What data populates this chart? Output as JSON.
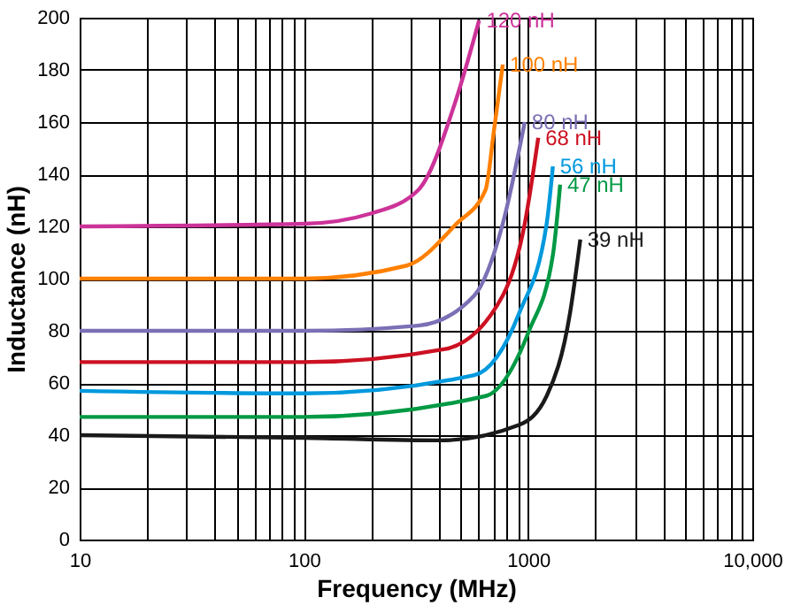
{
  "chart_data": {
    "type": "line",
    "xlabel": "Frequency (MHz)",
    "ylabel": "Inductance (nH)",
    "log": "x",
    "grid": true,
    "legend": false,
    "marker": "none",
    "line_style": "solid",
    "xlim": [
      10,
      10000
    ],
    "ylim": [
      0,
      200
    ],
    "xticks": [
      10,
      {
        "value": 20,
        "label": null
      },
      {
        "value": 30,
        "label": null
      },
      {
        "value": 40,
        "label": null
      },
      {
        "value": 50,
        "label": null
      },
      {
        "value": 60,
        "label": null
      },
      {
        "value": 70,
        "label": null
      },
      {
        "value": 80,
        "label": null
      },
      {
        "value": 90,
        "label": null
      },
      100,
      {
        "value": 200,
        "label": null
      },
      {
        "value": 300,
        "label": null
      },
      {
        "value": 400,
        "label": null
      },
      {
        "value": 500,
        "label": null
      },
      {
        "value": 600,
        "label": null
      },
      {
        "value": 700,
        "label": null
      },
      {
        "value": 800,
        "label": null
      },
      {
        "value": 900,
        "label": null
      },
      1000,
      {
        "value": 2000,
        "label": null
      },
      {
        "value": 3000,
        "label": null
      },
      {
        "value": 4000,
        "label": null
      },
      {
        "value": 5000,
        "label": null
      },
      {
        "value": 6000,
        "label": null
      },
      {
        "value": 7000,
        "label": null
      },
      {
        "value": 8000,
        "label": null
      },
      {
        "value": 9000,
        "label": null
      },
      {
        "value": 10000,
        "label": "10,000"
      }
    ],
    "yticks": [
      0,
      20,
      40,
      60,
      80,
      100,
      120,
      140,
      160,
      180,
      200
    ],
    "series": [
      {
        "name": "120 nH",
        "color": "#cc3399",
        "x": [
          10,
          100,
          200,
          324,
          479,
          605
        ],
        "values": [
          120,
          121,
          125,
          134,
          169,
          199
        ]
      },
      {
        "name": "100 nH",
        "color": "#ff8000",
        "x": [
          10,
          100,
          288,
          479,
          646,
          705,
          771
        ],
        "values": [
          100,
          100,
          105,
          121,
          134,
          157,
          182
        ]
      },
      {
        "name": "80 nH",
        "color": "#7b6fb5",
        "x": [
          10,
          100,
          324,
          575,
          771,
          966
        ],
        "values": [
          80,
          80,
          82,
          93.5,
          121,
          160
        ]
      },
      {
        "name": "68 nH",
        "color": "#cc1122",
        "x": [
          10,
          100,
          426,
          771,
          966,
          1110
        ],
        "values": [
          68,
          68,
          73,
          93.5,
          121,
          154
        ]
      },
      {
        "name": "56 nH",
        "color": "#0099dd",
        "x": [
          10,
          100,
          575,
          915,
          1210,
          1290
        ],
        "values": [
          57,
          56,
          63,
          87,
          121,
          143
        ]
      },
      {
        "name": "47 nH",
        "color": "#009944",
        "x": [
          10,
          100,
          646,
          1010,
          1290,
          1390
        ],
        "values": [
          47,
          47,
          55,
          80,
          109,
          136
        ]
      },
      {
        "name": "39 nH",
        "color": "#1a1a1a",
        "x": [
          10,
          100,
          405,
          915,
          1210,
          1540,
          1710
        ],
        "values": [
          40,
          39,
          38,
          44,
          55,
          87,
          115
        ]
      }
    ]
  }
}
